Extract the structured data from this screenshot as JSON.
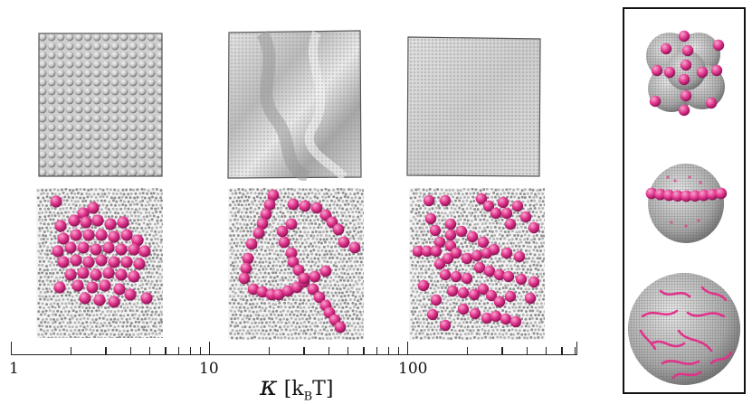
{
  "axis": {
    "tick_labels": [
      "1",
      "10",
      "100"
    ],
    "symbol": "κ",
    "unit_open": "[k",
    "unit_sub": "B",
    "unit_close": "T]",
    "scale": "log"
  },
  "colors": {
    "particle": "#e0338a",
    "particle_highlight": "#f6a6cf",
    "membrane": "#b9b9b9",
    "membrane_dark": "#7a7a7a",
    "frame": "#111111"
  },
  "panels": {
    "top_row": [
      "membrane-surface-low-kappa",
      "membrane-surface-mid-kappa",
      "membrane-surface-high-kappa"
    ],
    "bottom_row": [
      "particle-cluster",
      "particle-linear-aggregates",
      "particle-branched-chains"
    ],
    "inset": [
      "vesicle-budded",
      "vesicle-ring",
      "vesicle-strings"
    ]
  }
}
